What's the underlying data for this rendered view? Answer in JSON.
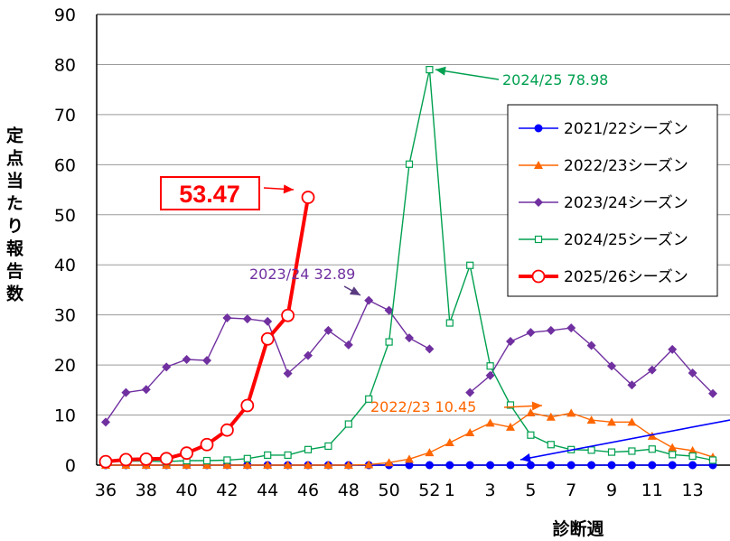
{
  "chart_data": {
    "type": "line",
    "ylabel": "定点当たり報告数",
    "xlabel": "診断週",
    "ylim": [
      0,
      90
    ],
    "y_ticks": [
      "0",
      "10",
      "20",
      "30",
      "40",
      "50",
      "60",
      "70",
      "80",
      "90"
    ],
    "weeks": [
      "36",
      "37",
      "38",
      "39",
      "40",
      "41",
      "42",
      "43",
      "44",
      "45",
      "46",
      "47",
      "48",
      "49",
      "50",
      "51",
      "52",
      "1",
      "2",
      "3",
      "4",
      "5",
      "6",
      "7",
      "8",
      "9",
      "10",
      "11",
      "12",
      "13",
      "14"
    ],
    "x_tick_labels": [
      "36",
      "38",
      "40",
      "42",
      "44",
      "46",
      "48",
      "50",
      "52",
      "1",
      "3",
      "5",
      "7",
      "9",
      "11",
      "13"
    ],
    "grid": "horizontal",
    "legend_position": "top-right",
    "series": [
      {
        "name": "2021/22シーズン",
        "color": "#0000ff",
        "marker": "circle-filled",
        "values": [
          0.0,
          0.0,
          0.0,
          0.0,
          0.0,
          0.0,
          0.0,
          0.0,
          0.0,
          0.0,
          0.0,
          0.0,
          0.0,
          0.0,
          0.0,
          0.0,
          0.0,
          0.0,
          0.0,
          0.0,
          0.0,
          0.0,
          0.0,
          0.0,
          0.0,
          0.0,
          0.0,
          0.0,
          0.0,
          0.0,
          0.0
        ]
      },
      {
        "name": "2022/23シーズン",
        "color": "#ff6600",
        "marker": "triangle-filled",
        "values": [
          0.0,
          0.0,
          0.0,
          0.0,
          0.0,
          0.0,
          0.0,
          0.0,
          0.0,
          0.0,
          0.0,
          0.0,
          0.0,
          0.1,
          0.5,
          1.2,
          2.5,
          4.5,
          6.5,
          8.4,
          7.6,
          10.45,
          9.6,
          10.4,
          9.0,
          8.6,
          8.6,
          5.8,
          3.5,
          2.9,
          1.6
        ]
      },
      {
        "name": "2023/24シーズン",
        "color": "#7030a0",
        "marker": "diamond-filled",
        "values": [
          8.6,
          14.5,
          15.1,
          19.6,
          21.1,
          20.9,
          29.4,
          29.2,
          28.7,
          18.3,
          21.9,
          26.9,
          24.0,
          32.89,
          30.9,
          25.4,
          23.2,
          null,
          14.5,
          17.9,
          24.7,
          26.5,
          26.9,
          27.4,
          23.9,
          19.8,
          16.0,
          19.0,
          23.1,
          18.4,
          14.3
        ]
      },
      {
        "name": "2024/25シーズン",
        "color": "#00a050",
        "marker": "square-open",
        "values": [
          0.7,
          0.8,
          0.8,
          0.7,
          0.9,
          0.9,
          1.0,
          1.3,
          2.0,
          2.0,
          3.1,
          3.8,
          8.2,
          13.2,
          24.6,
          60.1,
          78.98,
          28.4,
          39.9,
          19.8,
          12.0,
          6.0,
          4.1,
          3.1,
          3.0,
          2.6,
          2.8,
          3.2,
          2.1,
          1.8,
          1.0
        ]
      },
      {
        "name": "2025/26シーズン",
        "color": "#ff0000",
        "marker": "circle-open",
        "values": [
          0.7,
          1.1,
          1.2,
          1.3,
          2.4,
          4.1,
          7.0,
          11.9,
          25.2,
          29.9,
          53.47
        ]
      }
    ],
    "annotations": [
      {
        "text": "2024/25  78.98",
        "color": "#00a050"
      },
      {
        "text": "2023/24  32.89",
        "color": "#7030a0"
      },
      {
        "text": "2022/23 10.45",
        "color": "#ff6600"
      },
      {
        "text": "53.47",
        "color": "#ff0000"
      }
    ]
  }
}
